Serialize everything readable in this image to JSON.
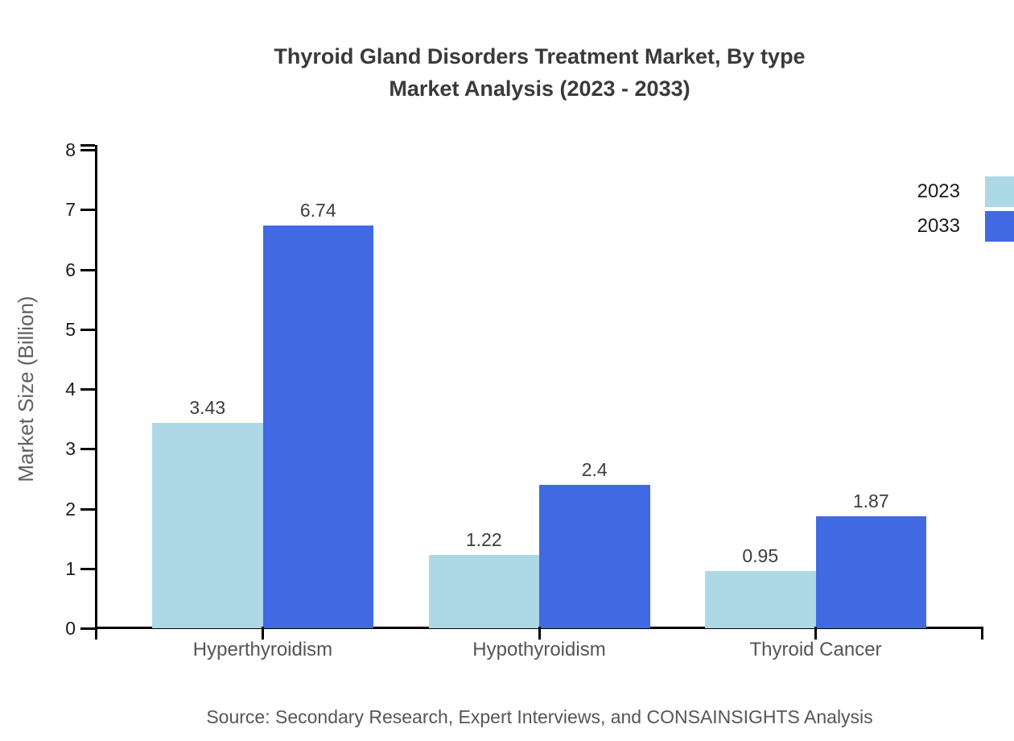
{
  "title": {
    "line1": "Thyroid Gland Disorders Treatment Market, By type",
    "line2": "Market Analysis (2023 - 2033)"
  },
  "source": "Source: Secondary Research, Expert Interviews, and CONSAINSIGHTS Analysis",
  "chart_data": {
    "type": "bar",
    "title": "Thyroid Gland Disorders Treatment Market, By type Market Analysis (2023 - 2033)",
    "categories": [
      "Hyperthyroidism",
      "Hypothyroidism",
      "Thyroid Cancer"
    ],
    "series": [
      {
        "name": "2023",
        "color": "#add8e6",
        "values": [
          3.43,
          1.22,
          0.95
        ],
        "labels": [
          "3.43",
          "1.22",
          "0.95"
        ]
      },
      {
        "name": "2033",
        "color": "#4169e1",
        "values": [
          6.74,
          2.4,
          1.87
        ],
        "labels": [
          "6.74",
          "2.4",
          "1.87"
        ]
      }
    ],
    "xlabel": "",
    "ylabel": "Market Size (Billion)",
    "ylim": [
      0,
      8
    ],
    "yticks": [
      0,
      1,
      2,
      3,
      4,
      5,
      6,
      7,
      8
    ],
    "grid": false,
    "legend_position": "right-edge",
    "colors": {
      "axis": "#000000",
      "tick_label": "#1c1c1c",
      "category_label": "#555555",
      "value_label": "#3d3d3d",
      "legend_label": "#1a1a1a",
      "title_text": "#3a3a3a",
      "muted_text": "#565656"
    }
  }
}
